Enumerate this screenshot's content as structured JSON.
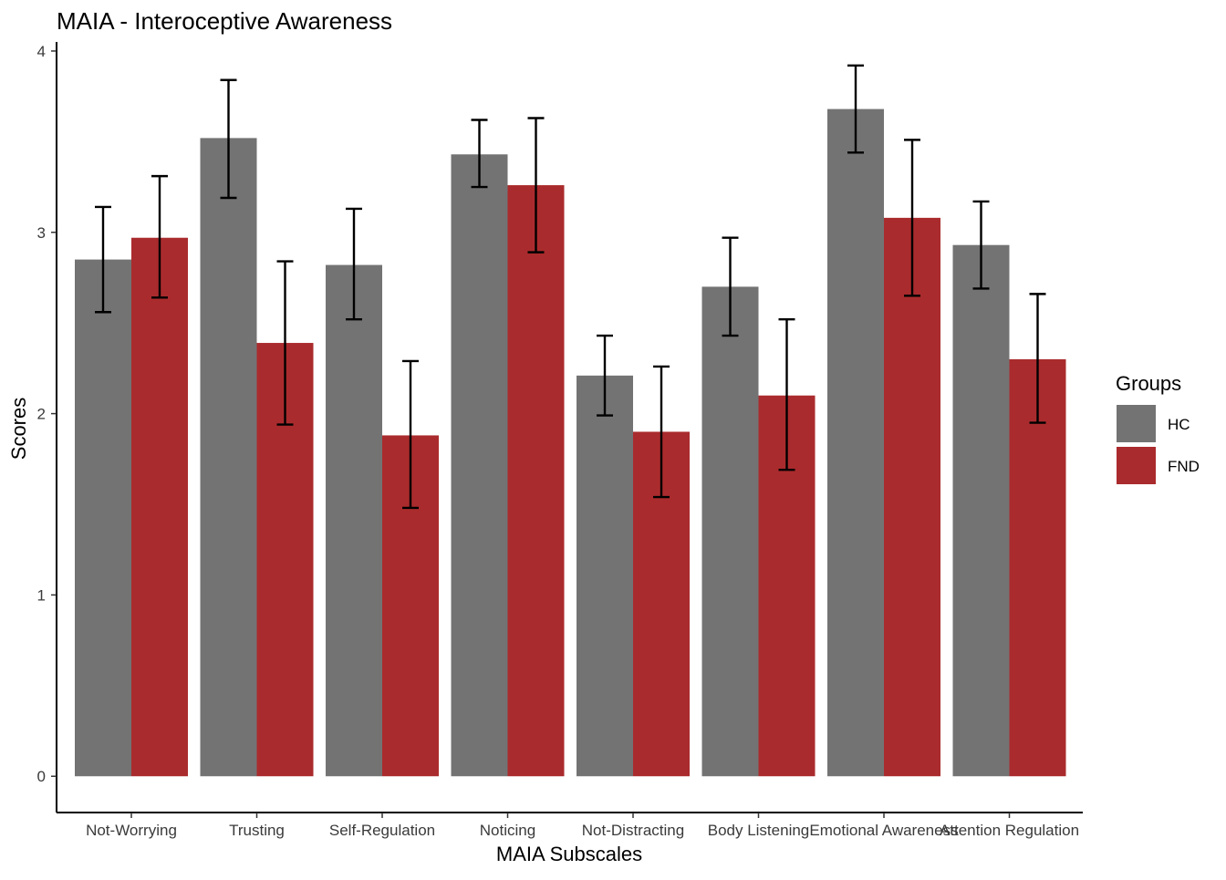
{
  "chart_data": {
    "type": "bar",
    "title": "MAIA - Interoceptive Awareness",
    "xlabel": "MAIA Subscales",
    "ylabel": "Scores",
    "ylim": [
      -0.2,
      4.05
    ],
    "yticks": [
      0,
      1,
      2,
      3,
      4
    ],
    "grid": false,
    "legend": {
      "title": "Groups",
      "placement": "right"
    },
    "categories": [
      "Not-Worrying",
      "Trusting",
      "Self-Regulation",
      "Noticing",
      "Not-Distracting",
      "Body Listening",
      "Emotional Awareness",
      "Attention Regulation"
    ],
    "series": [
      {
        "name": "HC",
        "color": "#737373",
        "values": [
          2.85,
          3.52,
          2.82,
          3.43,
          2.21,
          2.7,
          3.68,
          2.93
        ],
        "error_low": [
          2.56,
          3.19,
          2.52,
          3.25,
          1.99,
          2.43,
          3.44,
          2.69
        ],
        "error_high": [
          3.14,
          3.84,
          3.13,
          3.62,
          2.43,
          2.97,
          3.92,
          3.17
        ]
      },
      {
        "name": "FND",
        "color": "#AA2B2D",
        "values": [
          2.97,
          2.39,
          1.88,
          3.26,
          1.9,
          2.1,
          3.08,
          2.3
        ],
        "error_low": [
          2.64,
          1.94,
          1.48,
          2.89,
          1.54,
          1.69,
          2.65,
          1.95
        ],
        "error_high": [
          3.31,
          2.84,
          2.29,
          3.63,
          2.26,
          2.52,
          3.51,
          2.66
        ]
      }
    ]
  }
}
